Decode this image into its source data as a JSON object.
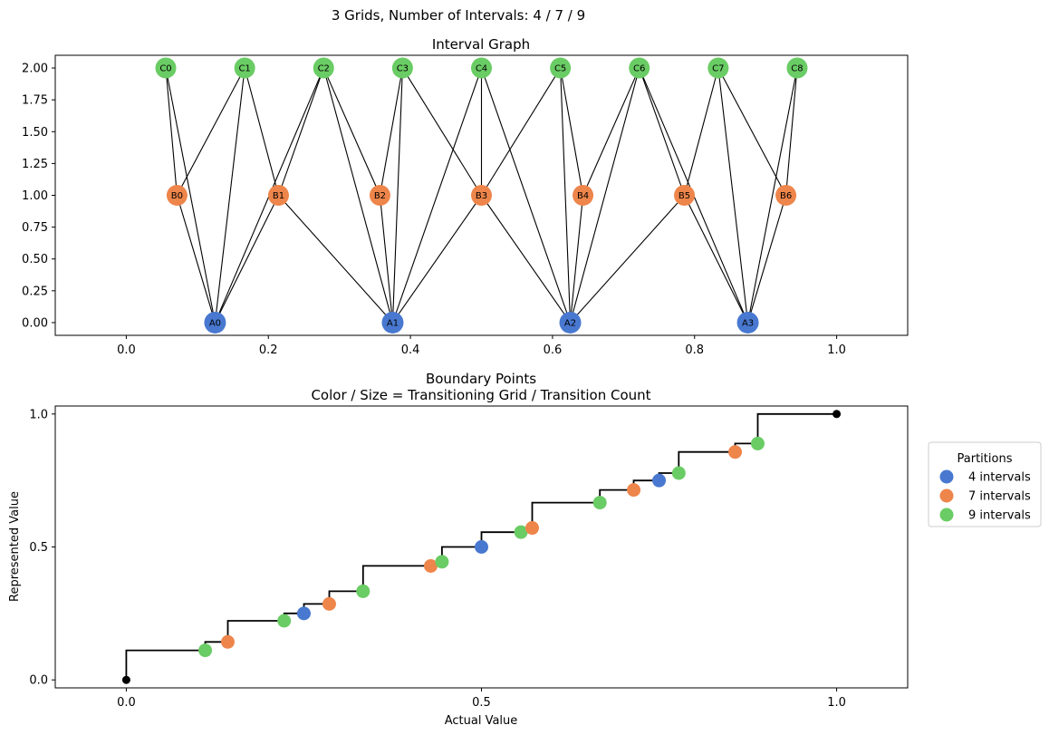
{
  "suptitle": "3 Grids, Number of Intervals: 4 / 7 / 9",
  "colors": {
    "grid4": "#4878d0",
    "grid7": "#ee854a",
    "grid9": "#6acc64",
    "endpoint": "#000000",
    "edge": "#000000"
  },
  "chart_data": [
    {
      "type": "network",
      "title": "Interval Graph",
      "xlim": [
        -0.1,
        1.1
      ],
      "ylim": [
        -0.1,
        2.1
      ],
      "xticks": [
        "0.0",
        "0.2",
        "0.4",
        "0.6",
        "0.8",
        "1.0"
      ],
      "yticks": [
        "0.00",
        "0.25",
        "0.50",
        "0.75",
        "1.00",
        "1.25",
        "1.50",
        "1.75",
        "2.00"
      ],
      "nodes": [
        {
          "id": "A0",
          "x": 0.125,
          "y": 0,
          "group": "grid4"
        },
        {
          "id": "A1",
          "x": 0.375,
          "y": 0,
          "group": "grid4"
        },
        {
          "id": "A2",
          "x": 0.625,
          "y": 0,
          "group": "grid4"
        },
        {
          "id": "A3",
          "x": 0.875,
          "y": 0,
          "group": "grid4"
        },
        {
          "id": "B0",
          "x": 0.0714,
          "y": 1,
          "group": "grid7"
        },
        {
          "id": "B1",
          "x": 0.2143,
          "y": 1,
          "group": "grid7"
        },
        {
          "id": "B2",
          "x": 0.3571,
          "y": 1,
          "group": "grid7"
        },
        {
          "id": "B3",
          "x": 0.5,
          "y": 1,
          "group": "grid7"
        },
        {
          "id": "B4",
          "x": 0.6429,
          "y": 1,
          "group": "grid7"
        },
        {
          "id": "B5",
          "x": 0.7857,
          "y": 1,
          "group": "grid7"
        },
        {
          "id": "B6",
          "x": 0.9286,
          "y": 1,
          "group": "grid7"
        },
        {
          "id": "C0",
          "x": 0.0556,
          "y": 2,
          "group": "grid9"
        },
        {
          "id": "C1",
          "x": 0.1667,
          "y": 2,
          "group": "grid9"
        },
        {
          "id": "C2",
          "x": 0.2778,
          "y": 2,
          "group": "grid9"
        },
        {
          "id": "C3",
          "x": 0.3889,
          "y": 2,
          "group": "grid9"
        },
        {
          "id": "C4",
          "x": 0.5,
          "y": 2,
          "group": "grid9"
        },
        {
          "id": "C5",
          "x": 0.6111,
          "y": 2,
          "group": "grid9"
        },
        {
          "id": "C6",
          "x": 0.7222,
          "y": 2,
          "group": "grid9"
        },
        {
          "id": "C7",
          "x": 0.8333,
          "y": 2,
          "group": "grid9"
        },
        {
          "id": "C8",
          "x": 0.9444,
          "y": 2,
          "group": "grid9"
        }
      ],
      "edges": [
        [
          "A0",
          "B0"
        ],
        [
          "A0",
          "B1"
        ],
        [
          "A0",
          "C0"
        ],
        [
          "A0",
          "C1"
        ],
        [
          "A0",
          "C2"
        ],
        [
          "A1",
          "B1"
        ],
        [
          "A1",
          "B2"
        ],
        [
          "A1",
          "B3"
        ],
        [
          "A1",
          "C2"
        ],
        [
          "A1",
          "C3"
        ],
        [
          "A1",
          "C4"
        ],
        [
          "A2",
          "B3"
        ],
        [
          "A2",
          "B4"
        ],
        [
          "A2",
          "B5"
        ],
        [
          "A2",
          "C4"
        ],
        [
          "A2",
          "C5"
        ],
        [
          "A2",
          "C6"
        ],
        [
          "A3",
          "B5"
        ],
        [
          "A3",
          "B6"
        ],
        [
          "A3",
          "C6"
        ],
        [
          "A3",
          "C7"
        ],
        [
          "A3",
          "C8"
        ],
        [
          "B0",
          "C0"
        ],
        [
          "B0",
          "C1"
        ],
        [
          "B1",
          "C1"
        ],
        [
          "B1",
          "C2"
        ],
        [
          "B2",
          "C2"
        ],
        [
          "B2",
          "C3"
        ],
        [
          "B3",
          "C3"
        ],
        [
          "B3",
          "C4"
        ],
        [
          "B3",
          "C5"
        ],
        [
          "B4",
          "C5"
        ],
        [
          "B4",
          "C6"
        ],
        [
          "B5",
          "C6"
        ],
        [
          "B5",
          "C7"
        ],
        [
          "B6",
          "C7"
        ],
        [
          "B6",
          "C8"
        ]
      ]
    },
    {
      "type": "scatter",
      "title": "Boundary Points",
      "subtitle": "Color / Size = Transitioning Grid / Transition Count",
      "xlabel": "Actual Value",
      "ylabel": "Represented Value",
      "xlim": [
        -0.1,
        1.1
      ],
      "ylim": [
        -0.03,
        1.03
      ],
      "xticks": [
        "0.0",
        "0.5",
        "1.0"
      ],
      "yticks": [
        "0.0",
        "0.5",
        "1.0"
      ],
      "legend": {
        "title": "Partitions",
        "placement": "right",
        "items": [
          {
            "label": "4 intervals",
            "group": "grid4"
          },
          {
            "label": "7 intervals",
            "group": "grid7"
          },
          {
            "label": "9 intervals",
            "group": "grid9"
          }
        ]
      },
      "step": [
        [
          0,
          0
        ],
        [
          0,
          0.1111
        ],
        [
          0.1111,
          0.1111
        ],
        [
          0.1111,
          0.1429
        ],
        [
          0.1429,
          0.1429
        ],
        [
          0.1429,
          0.2222
        ],
        [
          0.2222,
          0.2222
        ],
        [
          0.2222,
          0.25
        ],
        [
          0.25,
          0.25
        ],
        [
          0.25,
          0.2857
        ],
        [
          0.2857,
          0.2857
        ],
        [
          0.2857,
          0.3333
        ],
        [
          0.3333,
          0.3333
        ],
        [
          0.3333,
          0.4286
        ],
        [
          0.4286,
          0.4286
        ],
        [
          0.4286,
          0.4444
        ],
        [
          0.4444,
          0.4444
        ],
        [
          0.4444,
          0.5
        ],
        [
          0.5,
          0.5
        ],
        [
          0.5,
          0.5556
        ],
        [
          0.5556,
          0.5556
        ],
        [
          0.5556,
          0.5714
        ],
        [
          0.5714,
          0.5714
        ],
        [
          0.5714,
          0.6667
        ],
        [
          0.6667,
          0.6667
        ],
        [
          0.6667,
          0.7143
        ],
        [
          0.7143,
          0.7143
        ],
        [
          0.7143,
          0.75
        ],
        [
          0.75,
          0.75
        ],
        [
          0.75,
          0.7778
        ],
        [
          0.7778,
          0.7778
        ],
        [
          0.7778,
          0.8571
        ],
        [
          0.8571,
          0.8571
        ],
        [
          0.8571,
          0.8889
        ],
        [
          0.8889,
          0.8889
        ],
        [
          0.8889,
          1
        ],
        [
          1,
          1
        ]
      ],
      "endpoints": [
        [
          0,
          0
        ],
        [
          1,
          1
        ]
      ],
      "points": [
        {
          "x": 0.1111,
          "y": 0.1111,
          "group": "grid9"
        },
        {
          "x": 0.1429,
          "y": 0.1429,
          "group": "grid7"
        },
        {
          "x": 0.2222,
          "y": 0.2222,
          "group": "grid9"
        },
        {
          "x": 0.25,
          "y": 0.25,
          "group": "grid4"
        },
        {
          "x": 0.2857,
          "y": 0.2857,
          "group": "grid7"
        },
        {
          "x": 0.3333,
          "y": 0.3333,
          "group": "grid9"
        },
        {
          "x": 0.4286,
          "y": 0.4286,
          "group": "grid7"
        },
        {
          "x": 0.4444,
          "y": 0.4444,
          "group": "grid9"
        },
        {
          "x": 0.5,
          "y": 0.5,
          "group": "grid4"
        },
        {
          "x": 0.5556,
          "y": 0.5556,
          "group": "grid9"
        },
        {
          "x": 0.5714,
          "y": 0.5714,
          "group": "grid7"
        },
        {
          "x": 0.6667,
          "y": 0.6667,
          "group": "grid9"
        },
        {
          "x": 0.7143,
          "y": 0.7143,
          "group": "grid7"
        },
        {
          "x": 0.75,
          "y": 0.75,
          "group": "grid4"
        },
        {
          "x": 0.7778,
          "y": 0.7778,
          "group": "grid9"
        },
        {
          "x": 0.8571,
          "y": 0.8571,
          "group": "grid7"
        },
        {
          "x": 0.8889,
          "y": 0.8889,
          "group": "grid9"
        }
      ]
    }
  ]
}
